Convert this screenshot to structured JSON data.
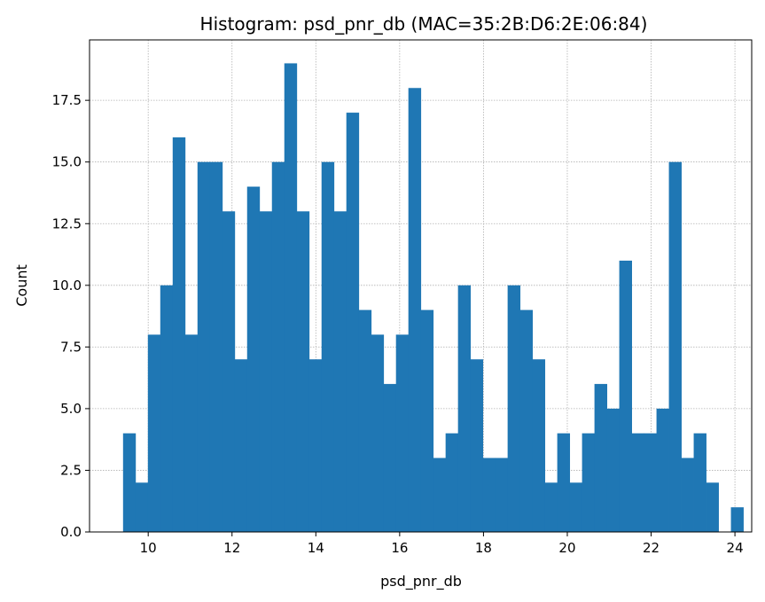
{
  "chart_data": {
    "type": "bar",
    "title": "Histogram: psd_pnr_db (MAC=35:2B:D6:2E:06:84)",
    "xlabel": "psd_pnr_db",
    "ylabel": "Count",
    "xlim": [
      8.6,
      24.4
    ],
    "ylim": [
      0,
      19.95
    ],
    "xticks": [
      "10",
      "12",
      "14",
      "16",
      "18",
      "20",
      "22",
      "24"
    ],
    "yticks": [
      "0.0",
      "2.5",
      "5.0",
      "7.5",
      "10.0",
      "12.5",
      "15.0",
      "17.5"
    ],
    "grid": true,
    "bar_color": "#1f77b4",
    "bins": {
      "start": 9.4,
      "width": 0.296,
      "counts": [
        4,
        2,
        8,
        10,
        16,
        8,
        15,
        15,
        13,
        7,
        14,
        13,
        15,
        19,
        13,
        7,
        15,
        13,
        17,
        9,
        8,
        6,
        8,
        18,
        9,
        3,
        4,
        10,
        7,
        3,
        3,
        10,
        9,
        7,
        2,
        4,
        2,
        4,
        6,
        5,
        11,
        4,
        4,
        5,
        15,
        3,
        4,
        2,
        0,
        1
      ]
    }
  }
}
